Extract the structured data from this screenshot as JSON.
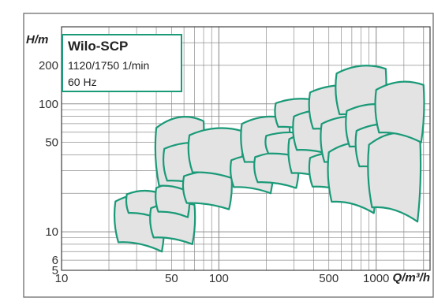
{
  "chart_data": {
    "type": "area",
    "xlabel": "Q/m³/h",
    "ylabel": "H/m",
    "xscale": "log",
    "yscale": "log",
    "xlim": [
      10,
      2200
    ],
    "ylim": [
      5,
      400
    ],
    "x_ticks": [
      "10",
      "50",
      "100",
      "500",
      "1000"
    ],
    "x_tick_values": [
      10,
      50,
      100,
      500,
      1000
    ],
    "y_ticks": [
      "5",
      "6",
      "10",
      "50",
      "100",
      "200"
    ],
    "y_tick_values": [
      5,
      6,
      10,
      50,
      100,
      200
    ],
    "grid": true,
    "legend": {
      "title": "Wilo-SCP",
      "lines": [
        "1120/1750 1/min",
        "60 Hz"
      ],
      "position": "top-left"
    },
    "colors": {
      "outline": "#1a9a78",
      "fill": "#e3e3e3",
      "grid": "#8f8f8f",
      "frame": "#6d6d6d"
    },
    "series": [
      {
        "q": [
          22,
          45
        ],
        "h": [
          7,
          20
        ]
      },
      {
        "q": [
          26,
          40
        ],
        "h": [
          13,
          21
        ]
      },
      {
        "q": [
          37,
          70
        ],
        "h": [
          8,
          17
        ]
      },
      {
        "q": [
          40,
          65
        ],
        "h": [
          13,
          24
        ]
      },
      {
        "q": [
          40,
          80
        ],
        "h": [
          18,
          80
        ]
      },
      {
        "q": [
          45,
          90
        ],
        "h": [
          22,
          50
        ]
      },
      {
        "q": [
          60,
          120
        ],
        "h": [
          15,
          30
        ]
      },
      {
        "q": [
          65,
          140
        ],
        "h": [
          25,
          65
        ]
      },
      {
        "q": [
          120,
          220
        ],
        "h": [
          20,
          40
        ]
      },
      {
        "q": [
          140,
          280
        ],
        "h": [
          30,
          80
        ]
      },
      {
        "q": [
          170,
          320
        ],
        "h": [
          22,
          42
        ]
      },
      {
        "q": [
          200,
          350
        ],
        "h": [
          38,
          60
        ]
      },
      {
        "q": [
          230,
          420
        ],
        "h": [
          60,
          110
        ]
      },
      {
        "q": [
          280,
          520
        ],
        "h": [
          25,
          60
        ]
      },
      {
        "q": [
          300,
          600
        ],
        "h": [
          38,
          90
        ]
      },
      {
        "q": [
          380,
          700
        ],
        "h": [
          20,
          42
        ]
      },
      {
        "q": [
          380,
          800
        ],
        "h": [
          55,
          140
        ]
      },
      {
        "q": [
          450,
          900
        ],
        "h": [
          30,
          80
        ]
      },
      {
        "q": [
          500,
          1000
        ],
        "h": [
          14,
          50
        ]
      },
      {
        "q": [
          560,
          1150
        ],
        "h": [
          70,
          200
        ]
      },
      {
        "q": [
          650,
          1300
        ],
        "h": [
          40,
          100
        ]
      },
      {
        "q": [
          750,
          1500
        ],
        "h": [
          28,
          70
        ]
      },
      {
        "q": [
          900,
          1900
        ],
        "h": [
          12,
          60
        ]
      },
      {
        "q": [
          1000,
          2000
        ],
        "h": [
          50,
          150
        ]
      }
    ]
  }
}
